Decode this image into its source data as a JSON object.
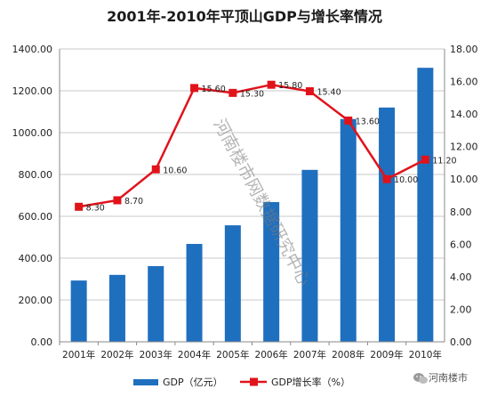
{
  "chart_data": {
    "type": "bar",
    "title": "2001年-2010年平顶山GDP与增长率情况",
    "categories": [
      "2001年",
      "2002年",
      "2003年",
      "2004年",
      "2005年",
      "2006年",
      "2007年",
      "2008年",
      "2009年",
      "2010年"
    ],
    "ylim": [
      0,
      1400
    ],
    "y_ticks": [
      "0.00",
      "200.00",
      "400.00",
      "600.00",
      "800.00",
      "1000.00",
      "1200.00",
      "1400.00"
    ],
    "y2lim": [
      0,
      18
    ],
    "y2_ticks": [
      "0.00",
      "2.00",
      "4.00",
      "6.00",
      "8.00",
      "10.00",
      "12.00",
      "14.00",
      "16.00",
      "18.00"
    ],
    "grid": true,
    "legend_position": "bottom",
    "series": [
      {
        "name": "GDP（亿元）",
        "type": "bar",
        "axis": "left",
        "color": "#1f6fbf",
        "values": [
          293,
          320,
          362,
          468,
          557,
          668,
          822,
          1065,
          1120,
          1310
        ]
      },
      {
        "name": "GDP增长率（%）",
        "type": "line",
        "axis": "right",
        "color": "#e0131b",
        "values": [
          8.3,
          8.7,
          10.6,
          15.6,
          15.3,
          15.8,
          15.4,
          13.6,
          10.0,
          11.2
        ],
        "labels": [
          "8.30",
          "8.70",
          "10.60",
          "15.60",
          "15.30",
          "15.80",
          "15.40",
          "13.60",
          "10.00",
          "11.20"
        ]
      }
    ]
  },
  "watermark": "河南楼市网数据研究中心",
  "corner_logo": {
    "text": "河南楼市",
    "icon": "wechat-icon"
  }
}
